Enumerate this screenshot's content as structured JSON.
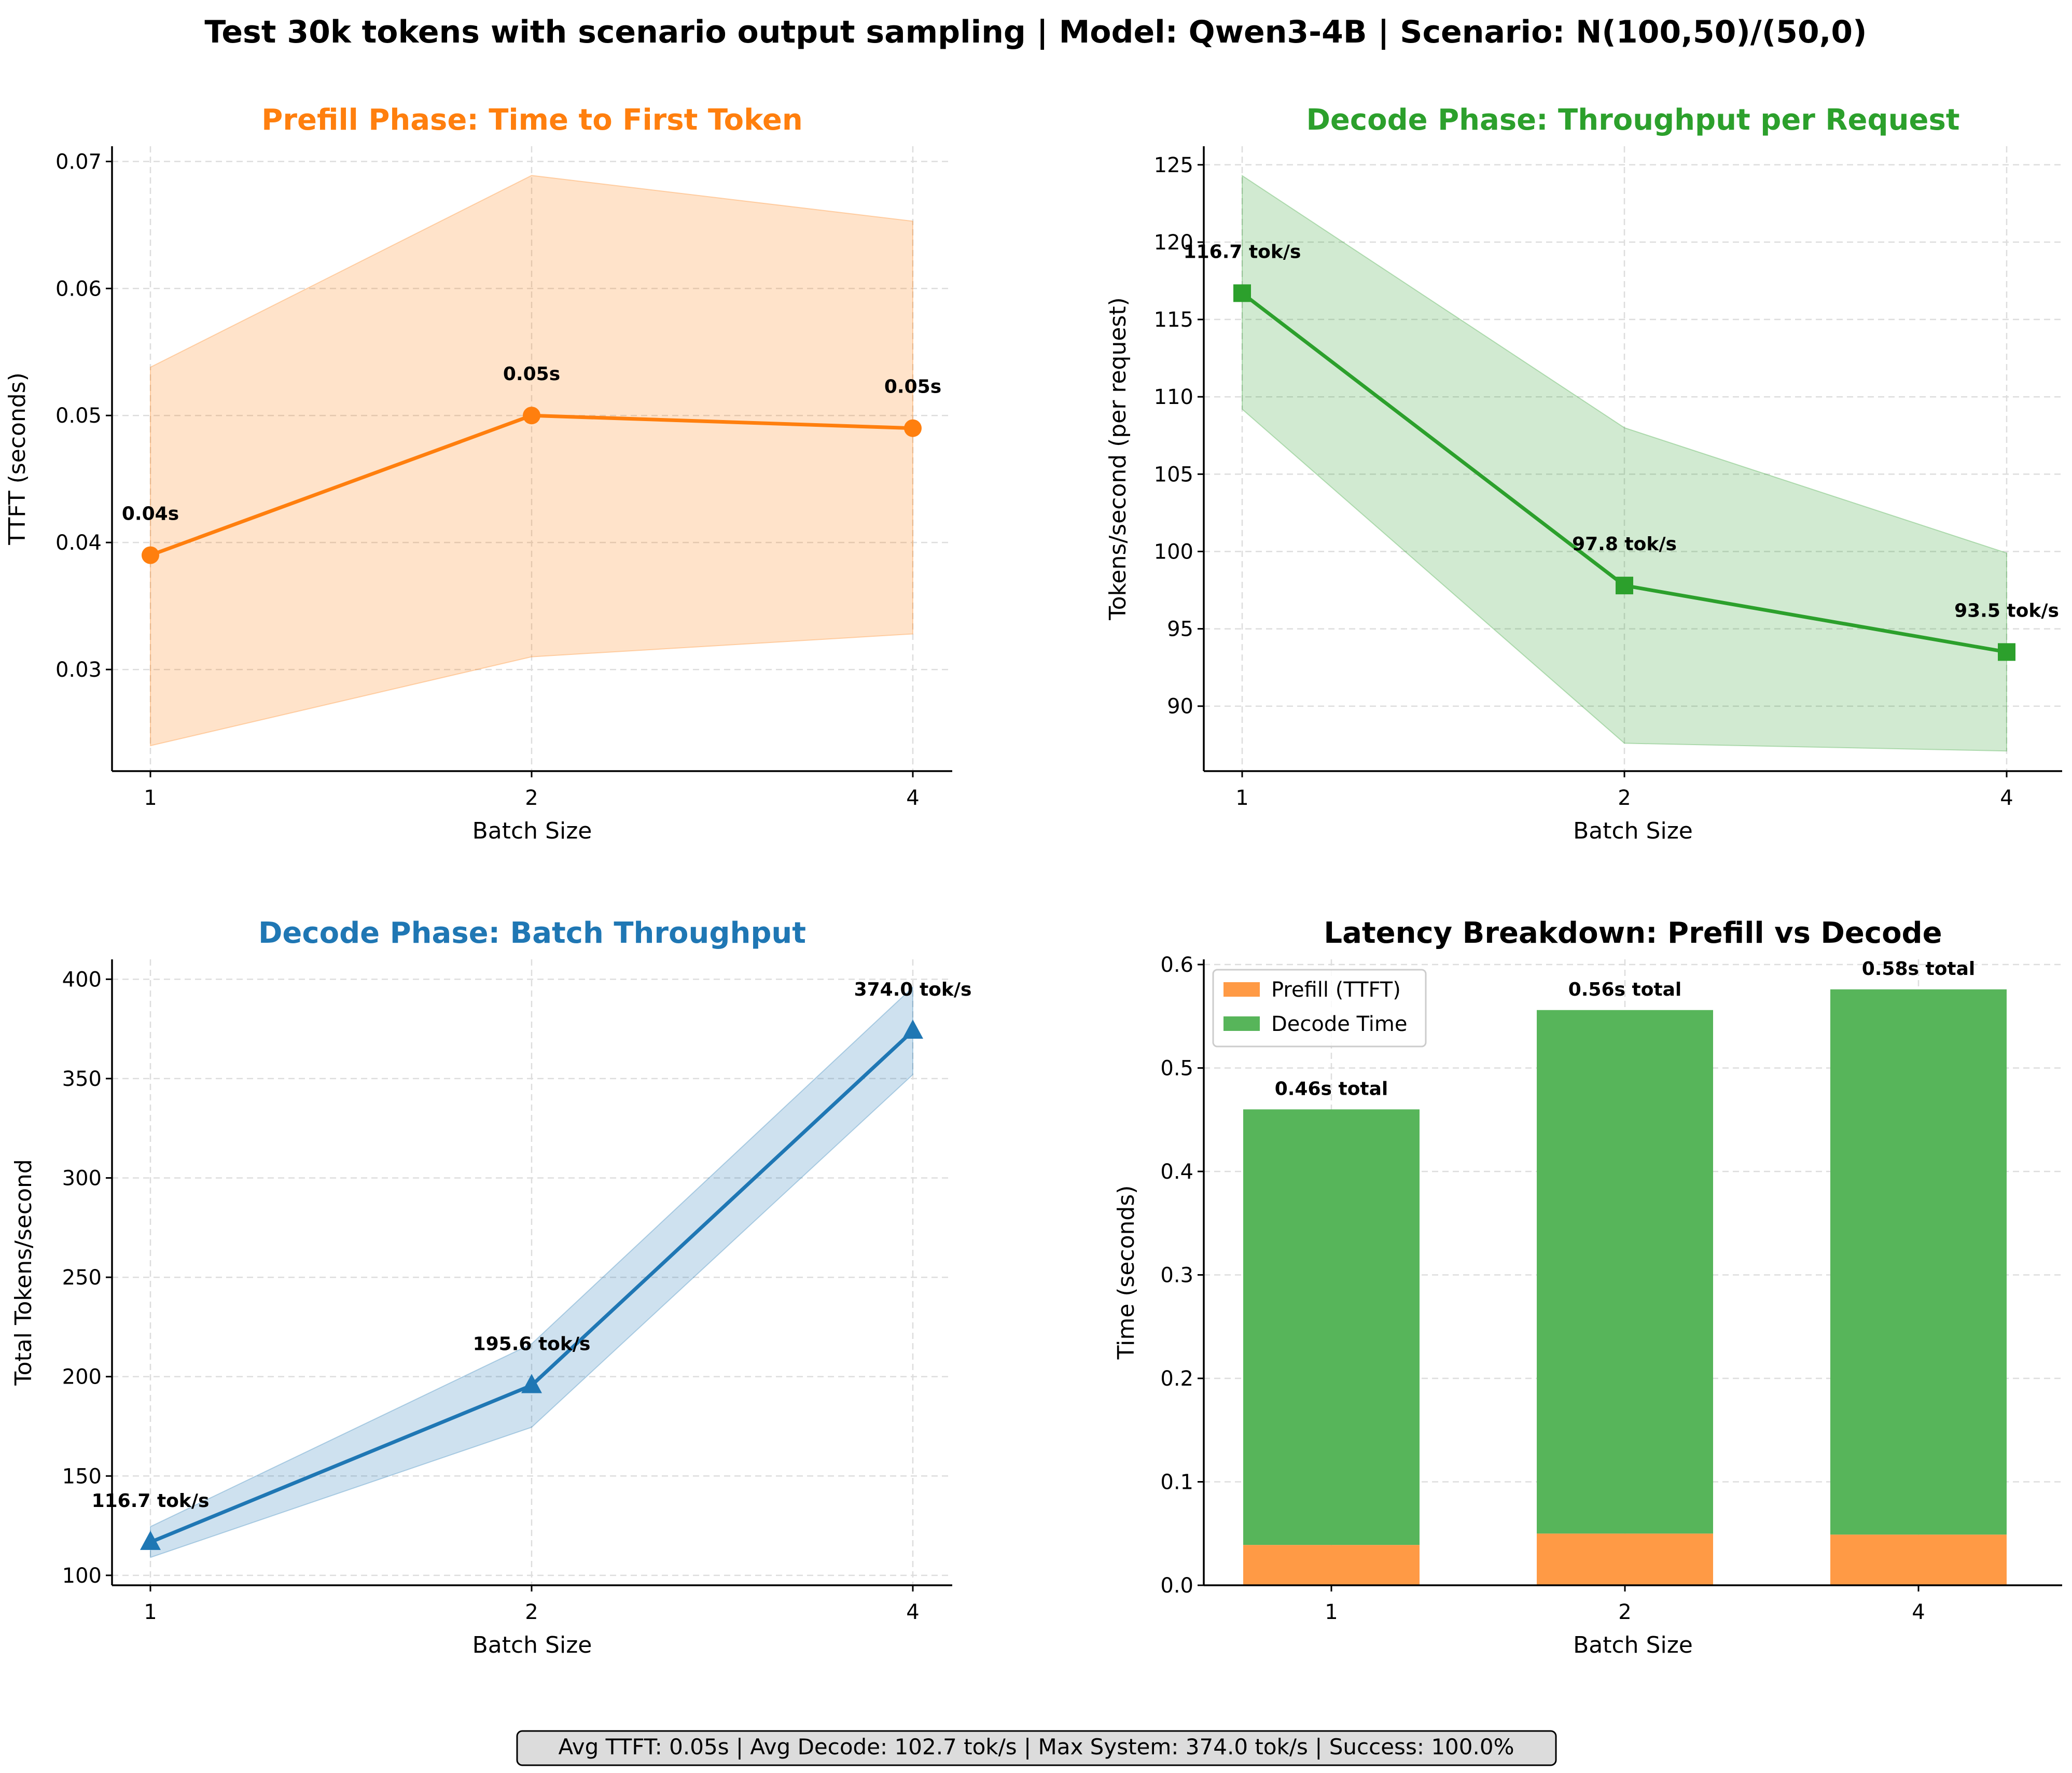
{
  "suptitle": "Test 30k tokens with scenario output sampling | Model: Qwen3-4B | Scenario: N(100,50)/(50,0)",
  "footer": "Avg TTFT: 0.05s | Avg Decode: 102.7 tok/s | Max System: 374.0 tok/s | Success: 100.0%",
  "colors": {
    "prefill": "#ff7f0e",
    "decode": "#2ca02c",
    "batch": "#1f77b4",
    "bar_prefill": "#ff9a45",
    "bar_decode": "#57b55a"
  },
  "chart_data": [
    {
      "type": "line",
      "title": "Prefill Phase: Time to First Token",
      "xlabel": "Batch Size",
      "ylabel": "TTFT (seconds)",
      "categories": [
        "1",
        "2",
        "4"
      ],
      "x": [
        1,
        2,
        4
      ],
      "values": [
        0.039,
        0.05,
        0.049
      ],
      "band_low": [
        0.024,
        0.031,
        0.0328
      ],
      "band_high": [
        0.0538,
        0.0689,
        0.0653
      ],
      "point_labels": [
        "0.04s",
        "0.05s",
        "0.05s"
      ],
      "ylim": [
        0.022,
        0.0712
      ],
      "yticks": [
        0.03,
        0.04,
        0.05,
        0.06,
        0.07
      ],
      "ytick_labels": [
        "0.03",
        "0.04",
        "0.05",
        "0.06",
        "0.07"
      ],
      "marker": "circle",
      "color": "#ff7f0e",
      "grid": true
    },
    {
      "type": "line",
      "title": "Decode Phase: Throughput per Request",
      "xlabel": "Batch Size",
      "ylabel": "Tokens/second (per request)",
      "categories": [
        "1",
        "2",
        "4"
      ],
      "x": [
        1,
        2,
        4
      ],
      "values": [
        116.7,
        97.8,
        93.5
      ],
      "band_low": [
        109.2,
        87.6,
        87.1
      ],
      "band_high": [
        124.3,
        108.0,
        99.9
      ],
      "point_labels": [
        "116.7 tok/s",
        "97.8 tok/s",
        "93.5 tok/s"
      ],
      "ylim": [
        85.8,
        126.2
      ],
      "yticks": [
        90,
        95,
        100,
        105,
        110,
        115,
        120,
        125
      ],
      "ytick_labels": [
        "90",
        "95",
        "100",
        "105",
        "110",
        "115",
        "120",
        "125"
      ],
      "marker": "square",
      "color": "#2ca02c",
      "grid": true
    },
    {
      "type": "line",
      "title": "Decode Phase: Batch Throughput",
      "xlabel": "Batch Size",
      "ylabel": "Total Tokens/second",
      "categories": [
        "1",
        "2",
        "4"
      ],
      "x": [
        1,
        2,
        4
      ],
      "values": [
        116.7,
        195.6,
        374.0
      ],
      "band_low": [
        109.0,
        174.5,
        352.0
      ],
      "band_high": [
        124.5,
        216.5,
        396.0
      ],
      "point_labels": [
        "116.7 tok/s",
        "195.6 tok/s",
        "374.0 tok/s"
      ],
      "ylim": [
        95,
        410
      ],
      "yticks": [
        100,
        150,
        200,
        250,
        300,
        350,
        400
      ],
      "ytick_labels": [
        "100",
        "150",
        "200",
        "250",
        "300",
        "350",
        "400"
      ],
      "marker": "triangle",
      "color": "#1f77b4",
      "grid": true
    },
    {
      "type": "bar",
      "stacked": true,
      "title": "Latency Breakdown: Prefill vs Decode",
      "xlabel": "Batch Size",
      "ylabel": "Time (seconds)",
      "categories": [
        "1",
        "2",
        "4"
      ],
      "series": [
        {
          "name": "Prefill (TTFT)",
          "values": [
            0.039,
            0.05,
            0.049
          ],
          "color": "#ff9a45"
        },
        {
          "name": "Decode Time",
          "values": [
            0.421,
            0.506,
            0.527
          ],
          "color": "#57b55a"
        }
      ],
      "totals": [
        0.46,
        0.556,
        0.576
      ],
      "total_labels": [
        "0.46s total",
        "0.56s total",
        "0.58s total"
      ],
      "ylim": [
        0,
        0.605
      ],
      "yticks": [
        0,
        0.1,
        0.2,
        0.3,
        0.4,
        0.5,
        0.6
      ],
      "ytick_labels": [
        "0.0",
        "0.1",
        "0.2",
        "0.3",
        "0.4",
        "0.5",
        "0.6"
      ],
      "legend": "top-left",
      "grid": true
    }
  ]
}
